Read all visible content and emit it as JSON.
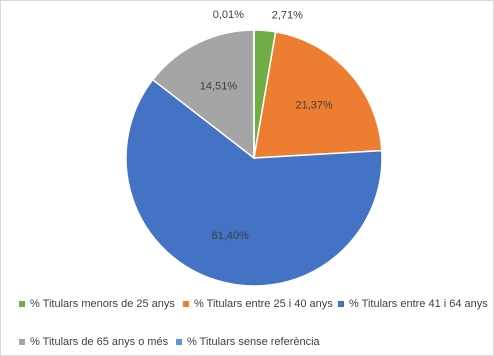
{
  "chart_data": {
    "type": "pie",
    "slices": [
      {
        "label": "% Titulars menors de 25 anys",
        "value": 2.71,
        "value_text": "2,71%",
        "color": "#70ad47"
      },
      {
        "label": "% Titulars entre 25 i 40 anys",
        "value": 21.37,
        "value_text": "21,37%",
        "color": "#ed7d31"
      },
      {
        "label": "% Titulars entre 41 i 64 anys",
        "value": 61.4,
        "value_text": "61,40%",
        "color": "#4472c4"
      },
      {
        "label": "% Titulars de 65 anys o més",
        "value": 14.51,
        "value_text": "14,51%",
        "color": "#a5a5a5"
      },
      {
        "label": "% Titulars sense referència",
        "value": 0.01,
        "value_text": "0,01%",
        "color": "#5b9bd5"
      }
    ],
    "legend_position": "bottom"
  }
}
